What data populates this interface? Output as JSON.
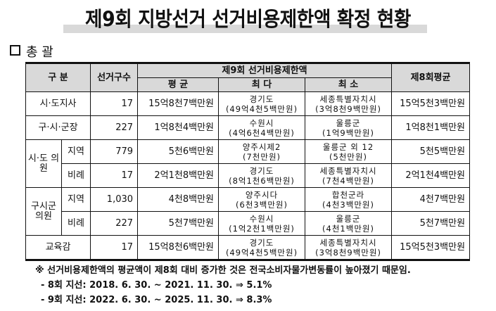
{
  "title": "제9회 지방선거 선거비용제한액 확정 현황",
  "section": "총 괄",
  "table": {
    "headers": {
      "category": "구 분",
      "districts": "선거구수",
      "group": "제9회 선거비용제한액",
      "avg": "평 균",
      "max": "최 다",
      "min": "최 소",
      "prev": "제8회평균"
    },
    "rows": [
      {
        "cat": "시·도지사",
        "districts": "17",
        "avg": "15억8천7백만원",
        "max_place": "경기도",
        "max_amt": "(49억4천5백만원)",
        "min_place": "세종특별자치시",
        "min_amt": "(3억8천9백만원)",
        "prev": "15억5천3백만원"
      },
      {
        "cat": "구·시·군장",
        "districts": "227",
        "avg": "1억8천4백만원",
        "max_place": "수원시",
        "max_amt": "(4억6천4백만원)",
        "min_place": "울릉군",
        "min_amt": "(1억9백만원)",
        "prev": "1억8천1백만원"
      },
      {
        "cat": "시·도 의원",
        "sub": "지역",
        "districts": "779",
        "avg": "5천6백만원",
        "max_place": "양주시제2",
        "max_amt": "(7천만원)",
        "min_place": "울릉군 외 12",
        "min_amt": "(5천만원)",
        "prev": "5천5백만원"
      },
      {
        "sub": "비례",
        "districts": "17",
        "avg": "2억1천8백만원",
        "max_place": "경기도",
        "max_amt": "(8억1천6백만원)",
        "min_place": "세종특별자치시",
        "min_amt": "(7천4백만원)",
        "prev": "2억1천4백만원"
      },
      {
        "cat": "구시군 의원",
        "sub": "지역",
        "districts": "1,030",
        "avg": "4천8백만원",
        "max_place": "양주시다",
        "max_amt": "(6천3백만원)",
        "min_place": "합천군라",
        "min_amt": "(4천3백만원)",
        "prev": "4천7백만원"
      },
      {
        "sub": "비례",
        "districts": "227",
        "avg": "5천7백만원",
        "max_place": "수원시",
        "max_amt": "(1억2천1백만원)",
        "min_place": "울릉군",
        "min_amt": "(4천1백만원)",
        "prev": "5천7백만원"
      },
      {
        "cat": "교육감",
        "districts": "17",
        "avg": "15억8천6백만원",
        "max_place": "경기도",
        "max_amt": "(49억4천5백만원)",
        "min_place": "세종특별자치시",
        "min_amt": "(3억8천9백만원)",
        "prev": "15억5천3백만원"
      }
    ]
  },
  "notes": {
    "main": "※ 선거비용제한액의 평균액이 제8회 대비 증가한 것은 전국소비자물가변동률이 높아졌기 때문임.",
    "line1": "- 8회 지선: 2018. 6. 30. ~ 2021. 11. 30. ⇒ 5.1%",
    "line2": "- 9회 지선: 2022. 6. 30. ~ 2025. 11. 30. ⇒ 8.3%"
  }
}
